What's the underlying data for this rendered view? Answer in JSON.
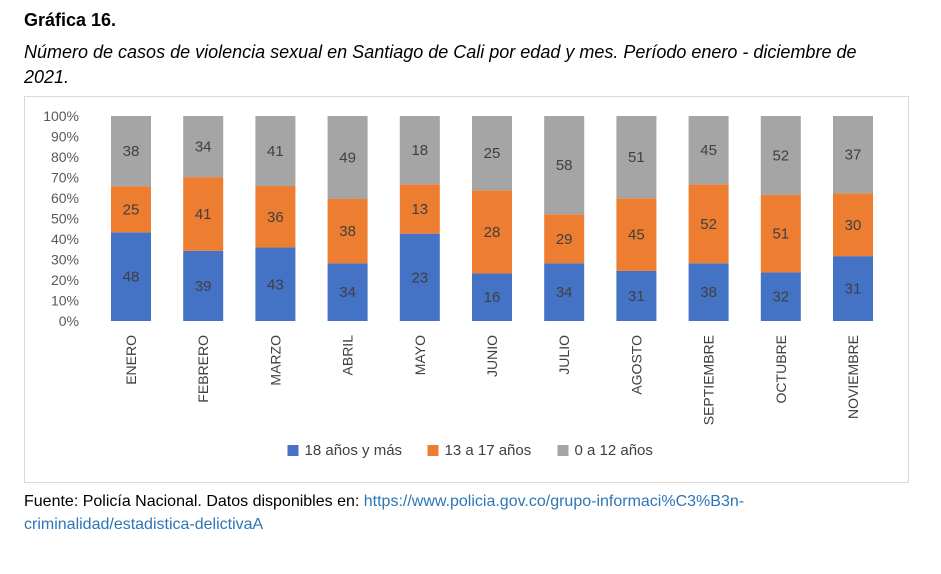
{
  "heading": "Gráfica 16.",
  "subtitle": "Número de casos de violencia sexual en Santiago de Cali por edad y mes. Período enero - diciembre de 2021.",
  "source": {
    "prefix": "Fuente: Policía Nacional. Datos disponibles en: ",
    "link": "https://www.policia.gov.co/grupo-informaci%C3%B3n-criminalidad/estadistica-delictivaA"
  },
  "chart_data": {
    "type": "bar",
    "stacked": "percent",
    "categories": [
      "ENERO",
      "FEBRERO",
      "MARZO",
      "ABRIL",
      "MAYO",
      "JUNIO",
      "JULIO",
      "AGOSTO",
      "SEPTIEMBRE",
      "OCTUBRE",
      "NOVIEMBRE"
    ],
    "series": [
      {
        "name": "18 años y más",
        "color": "#4472c4",
        "values": [
          48,
          39,
          43,
          34,
          23,
          16,
          34,
          31,
          38,
          32,
          31
        ]
      },
      {
        "name": "13 a 17 años",
        "color": "#ed7d31",
        "values": [
          25,
          41,
          36,
          38,
          13,
          28,
          29,
          45,
          52,
          51,
          30
        ]
      },
      {
        "name": "0 a 12 años",
        "color": "#a5a5a5",
        "values": [
          38,
          34,
          41,
          49,
          18,
          25,
          58,
          51,
          45,
          52,
          37
        ]
      }
    ],
    "yticks": [
      "0%",
      "10%",
      "20%",
      "30%",
      "40%",
      "50%",
      "60%",
      "70%",
      "80%",
      "90%",
      "100%"
    ],
    "ylim": [
      0,
      100
    ],
    "grid": false,
    "legend": "bottom"
  }
}
